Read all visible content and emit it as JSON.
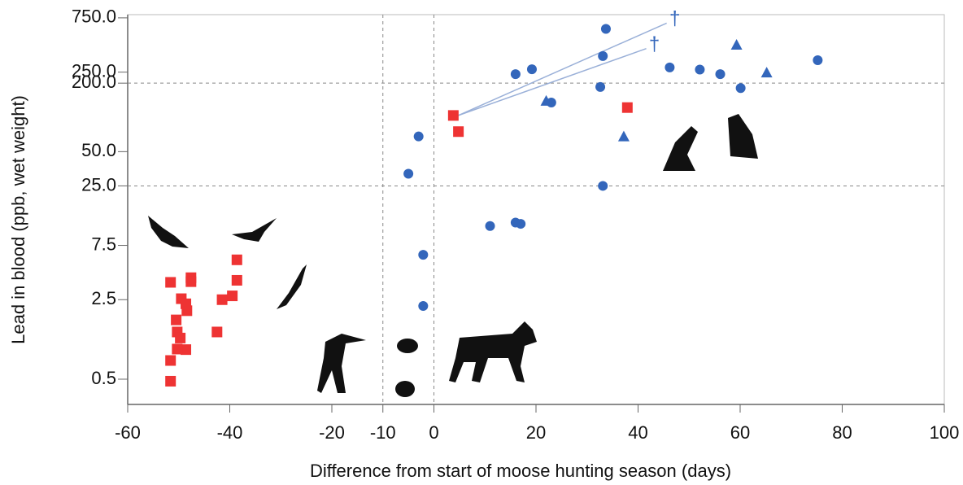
{
  "chart_data": {
    "type": "scatter",
    "x_label": "Difference from start of moose hunting season (days)",
    "y_label": "Lead in blood (ppb, wet weight)",
    "xlim": [
      -60,
      100
    ],
    "xticks": [
      -60,
      -40,
      -20,
      -10,
      0,
      20,
      40,
      60,
      80,
      100
    ],
    "ylim": [
      0.3,
      800
    ],
    "y_log": true,
    "yticks": [
      {
        "value": 750,
        "label": "750.0"
      },
      {
        "value": 250,
        "label": "250.0"
      },
      {
        "value": 200,
        "label": "200.0"
      },
      {
        "value": 50,
        "label": "50.0"
      },
      {
        "value": 25,
        "label": "25.0"
      },
      7.5,
      2.5,
      0.5
    ],
    "grid_y": [
      200,
      25
    ],
    "grid_x": [
      -10,
      0
    ],
    "series": [
      {
        "color": "#3366bb",
        "marker": "circle",
        "x": [
          33.7,
          33.1,
          16,
          19.2,
          75.2,
          46.2,
          52.1,
          56.1,
          32.6,
          60.1,
          23,
          -3,
          -5,
          33.1,
          11,
          16,
          17,
          -2.1,
          -2.1
        ],
        "values": [
          600,
          346,
          240,
          265,
          318,
          275,
          263,
          240,
          185,
          181,
          135,
          68,
          32,
          25,
          11.1,
          11.9,
          11.6,
          6.2,
          2.2
        ]
      },
      {
        "color": "#3366bb",
        "marker": "triangle",
        "x": [
          59.3,
          65.2,
          22,
          37.2
        ],
        "values": [
          435,
          248,
          140,
          68
        ]
      },
      {
        "color": "#ee3333",
        "marker": "square",
        "x": [
          3.8,
          4.8,
          37.9,
          -51.6,
          -47.6,
          -47.6,
          -38.6,
          -38.6,
          -49.5,
          -48.6,
          -48.4,
          -50.5,
          -41.5,
          -39.5,
          -42.5,
          -50.3,
          -49.7,
          -48.6,
          -50.3,
          -51.6,
          -51.6
        ],
        "values": [
          104,
          75,
          122,
          3.55,
          3.9,
          3.6,
          5.6,
          3.7,
          2.55,
          2.3,
          2.0,
          1.66,
          2.5,
          2.7,
          1.3,
          1.3,
          1.15,
          0.91,
          0.92,
          0.73,
          0.48
        ]
      }
    ],
    "annotations": [
      {
        "text": "†",
        "x": 47.2,
        "y": 720
      },
      {
        "text": "†",
        "x": 43.2,
        "y": 430
      }
    ]
  }
}
